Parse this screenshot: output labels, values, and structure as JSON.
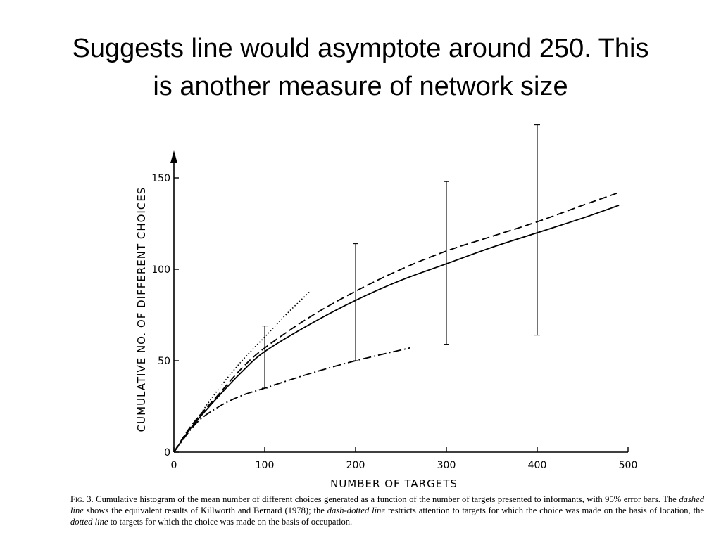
{
  "slide": {
    "title_line1": "Suggests line would asymptote around 250.  This",
    "title_line2": "is another measure of network size"
  },
  "caption": {
    "fig_label": "Fig",
    "fig_number": ". 3.",
    "t1": " Cumulative histogram of the mean number of different choices generated as a function of the number of targets presented to informants, with 95% error bars. The ",
    "dashed": "dashed line",
    "t2": " shows the equivalent results of Killworth and Bernard (1978); the ",
    "dashdot": "dash-dotted line",
    "t3": " restricts attention to targets for which the choice was made on the basis of location, the ",
    "dotted": "dotted line",
    "t4": " to targets for which the choice was made on the basis of occupation."
  },
  "chart_data": {
    "type": "line",
    "xlabel": "NUMBER OF TARGETS",
    "ylabel": "CUMULATIVE NO. OF DIFFERENT CHOICES",
    "xlim": [
      0,
      500
    ],
    "ylim": [
      0,
      150
    ],
    "xticks": [
      0,
      100,
      200,
      300,
      400,
      500
    ],
    "xtick_labels": [
      "0",
      "100",
      "200",
      "300",
      "400",
      "500"
    ],
    "yticks": [
      0,
      50,
      100,
      150
    ],
    "ytick_labels": [
      "0",
      "50",
      "100",
      "150"
    ],
    "grid": false,
    "series": [
      {
        "style": "solid",
        "x": [
          0,
          20,
          50,
          75,
          100,
          150,
          200,
          250,
          300,
          350,
          400,
          450,
          490
        ],
        "y": [
          0,
          14,
          31,
          44,
          55,
          70,
          83,
          94,
          103,
          112,
          120,
          128,
          135
        ]
      },
      {
        "style": "dashed",
        "x": [
          0,
          20,
          50,
          75,
          100,
          150,
          200,
          250,
          300,
          350,
          400,
          450,
          490
        ],
        "y": [
          0,
          15,
          32,
          46,
          57,
          74,
          88,
          100,
          110,
          118,
          126,
          135,
          142
        ]
      },
      {
        "style": "dash-dot",
        "x": [
          0,
          25,
          50,
          75,
          100,
          150,
          200,
          260
        ],
        "y": [
          0,
          16,
          25,
          31,
          35,
          43,
          50,
          57
        ]
      },
      {
        "style": "dotted",
        "x": [
          0,
          25,
          50,
          75,
          100,
          125,
          150
        ],
        "y": [
          0,
          18,
          35,
          50,
          63,
          76,
          88
        ]
      }
    ],
    "error_bars": [
      {
        "x": 100,
        "low": 35,
        "high": 69
      },
      {
        "x": 200,
        "low": 50,
        "high": 114
      },
      {
        "x": 300,
        "low": 59,
        "high": 148
      },
      {
        "x": 400,
        "low": 64,
        "high": 179
      }
    ]
  }
}
